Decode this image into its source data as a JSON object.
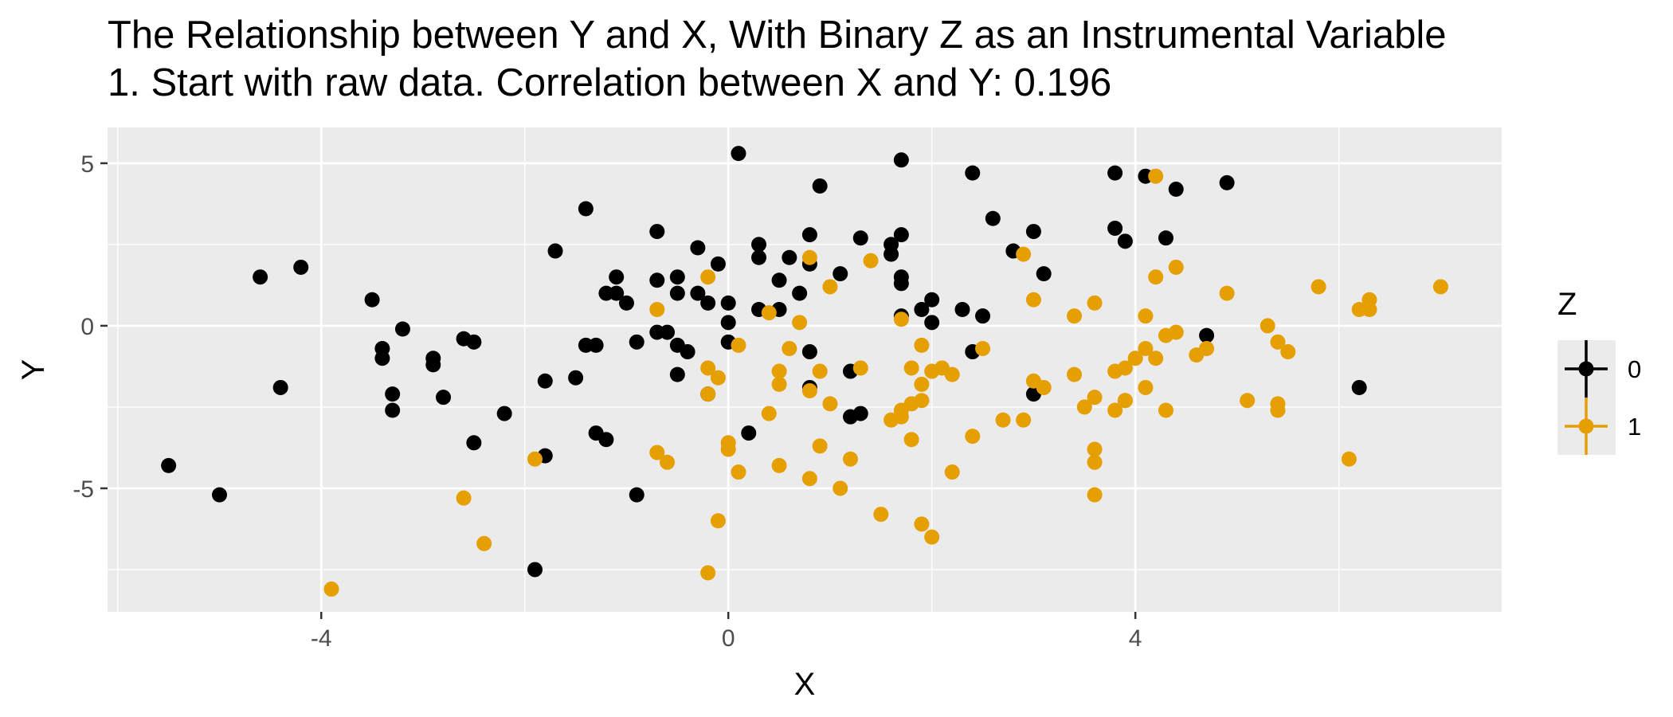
{
  "chart_data": {
    "type": "scatter",
    "title": "The Relationship between Y and X, With Binary Z as an Instrumental Variable",
    "subtitle": "1. Start with raw data. Correlation between X and Y: 0.196",
    "xlabel": "X",
    "ylabel": "Y",
    "xlim": [
      -6.1,
      7.6
    ],
    "ylim": [
      -8.8,
      6.1
    ],
    "xticks": [
      {
        "value": -4,
        "label": "-4"
      },
      {
        "value": 0,
        "label": "0"
      },
      {
        "value": 4,
        "label": "4"
      }
    ],
    "yticks": [
      {
        "value": -5,
        "label": "-5"
      },
      {
        "value": 0,
        "label": "0"
      },
      {
        "value": 5,
        "label": "5"
      }
    ],
    "grid": true,
    "panel_background": "#ebebeb",
    "legend": {
      "title": "Z",
      "placement": "right",
      "entries": [
        {
          "label": "0",
          "color": "#000000"
        },
        {
          "label": "1",
          "color": "#e69f00"
        }
      ]
    },
    "series": [
      {
        "name": "0",
        "color": "#000000",
        "points": [
          [
            -5.5,
            -4.3
          ],
          [
            -5.0,
            -5.2
          ],
          [
            -4.6,
            1.5
          ],
          [
            -4.4,
            -1.9
          ],
          [
            -4.2,
            1.8
          ],
          [
            -3.5,
            0.8
          ],
          [
            -3.4,
            -0.7
          ],
          [
            -3.4,
            -1.0
          ],
          [
            -3.3,
            -2.1
          ],
          [
            -3.3,
            -2.6
          ],
          [
            -3.2,
            -0.1
          ],
          [
            -2.9,
            -1.0
          ],
          [
            -2.9,
            -1.2
          ],
          [
            -2.8,
            -2.2
          ],
          [
            -2.6,
            -0.4
          ],
          [
            -2.5,
            -0.5
          ],
          [
            -2.5,
            -3.6
          ],
          [
            -2.2,
            -2.7
          ],
          [
            -1.9,
            -7.5
          ],
          [
            -1.8,
            -1.7
          ],
          [
            -1.8,
            -4.0
          ],
          [
            -1.7,
            2.3
          ],
          [
            -1.5,
            -1.6
          ],
          [
            -1.4,
            -0.6
          ],
          [
            -1.4,
            3.6
          ],
          [
            -1.3,
            -0.6
          ],
          [
            -1.3,
            -3.3
          ],
          [
            -1.2,
            1.0
          ],
          [
            -1.2,
            -3.5
          ],
          [
            -1.1,
            1.0
          ],
          [
            -1.1,
            1.5
          ],
          [
            -1.0,
            0.7
          ],
          [
            -0.9,
            -0.5
          ],
          [
            -0.9,
            -5.2
          ],
          [
            -0.7,
            2.9
          ],
          [
            -0.7,
            1.4
          ],
          [
            -0.7,
            -0.2
          ],
          [
            -0.6,
            -0.2
          ],
          [
            -0.5,
            1.5
          ],
          [
            -0.5,
            1.0
          ],
          [
            -0.5,
            -0.6
          ],
          [
            -0.5,
            -1.5
          ],
          [
            -0.4,
            -0.8
          ],
          [
            -0.3,
            1.0
          ],
          [
            -0.3,
            2.4
          ],
          [
            -0.2,
            0.7
          ],
          [
            -0.2,
            -2.1
          ],
          [
            -0.1,
            1.9
          ],
          [
            0.0,
            0.7
          ],
          [
            0.0,
            0.1
          ],
          [
            0.0,
            -0.5
          ],
          [
            0.1,
            5.3
          ],
          [
            0.2,
            -3.3
          ],
          [
            0.3,
            2.5
          ],
          [
            0.3,
            2.1
          ],
          [
            0.3,
            0.5
          ],
          [
            0.5,
            1.4
          ],
          [
            0.5,
            0.5
          ],
          [
            0.6,
            2.1
          ],
          [
            0.7,
            1.0
          ],
          [
            0.8,
            2.8
          ],
          [
            0.8,
            1.9
          ],
          [
            0.8,
            -0.8
          ],
          [
            0.8,
            -1.9
          ],
          [
            0.9,
            4.3
          ],
          [
            1.1,
            1.6
          ],
          [
            1.2,
            -1.4
          ],
          [
            1.2,
            -2.8
          ],
          [
            1.3,
            2.7
          ],
          [
            1.3,
            -2.7
          ],
          [
            1.6,
            2.5
          ],
          [
            1.6,
            2.2
          ],
          [
            1.7,
            2.8
          ],
          [
            1.7,
            1.5
          ],
          [
            1.7,
            0.3
          ],
          [
            1.7,
            5.1
          ],
          [
            1.7,
            1.3
          ],
          [
            1.9,
            0.5
          ],
          [
            2.0,
            0.8
          ],
          [
            2.0,
            0.1
          ],
          [
            2.3,
            0.5
          ],
          [
            2.4,
            4.7
          ],
          [
            2.4,
            -0.8
          ],
          [
            2.5,
            0.3
          ],
          [
            2.6,
            3.3
          ],
          [
            2.8,
            2.3
          ],
          [
            3.0,
            2.9
          ],
          [
            3.0,
            -2.1
          ],
          [
            3.1,
            1.6
          ],
          [
            3.8,
            3.0
          ],
          [
            3.8,
            4.7
          ],
          [
            3.9,
            2.6
          ],
          [
            4.1,
            4.6
          ],
          [
            4.3,
            2.7
          ],
          [
            4.4,
            4.2
          ],
          [
            4.7,
            -0.3
          ],
          [
            4.9,
            4.4
          ],
          [
            6.2,
            -1.9
          ]
        ]
      },
      {
        "name": "1",
        "color": "#e69f00",
        "points": [
          [
            -3.9,
            -8.1
          ],
          [
            -2.6,
            -5.3
          ],
          [
            -2.4,
            -6.7
          ],
          [
            -1.9,
            -4.1
          ],
          [
            -0.7,
            0.5
          ],
          [
            -0.7,
            -3.9
          ],
          [
            -0.6,
            -4.2
          ],
          [
            -0.2,
            1.5
          ],
          [
            -0.2,
            -7.6
          ],
          [
            -0.2,
            -2.1
          ],
          [
            -0.2,
            -1.3
          ],
          [
            -0.1,
            -1.6
          ],
          [
            -0.1,
            -6.0
          ],
          [
            0.0,
            -3.8
          ],
          [
            0.0,
            -3.6
          ],
          [
            0.1,
            -0.6
          ],
          [
            0.1,
            -4.5
          ],
          [
            0.4,
            -2.7
          ],
          [
            0.4,
            0.4
          ],
          [
            0.5,
            -1.8
          ],
          [
            0.5,
            -1.4
          ],
          [
            0.5,
            -4.3
          ],
          [
            0.6,
            -0.7
          ],
          [
            0.7,
            0.1
          ],
          [
            0.8,
            2.1
          ],
          [
            0.8,
            -2.0
          ],
          [
            0.8,
            -4.7
          ],
          [
            0.9,
            -1.4
          ],
          [
            0.9,
            -3.7
          ],
          [
            1.0,
            -2.4
          ],
          [
            1.0,
            1.2
          ],
          [
            1.1,
            -5.0
          ],
          [
            1.2,
            -4.1
          ],
          [
            1.3,
            -1.3
          ],
          [
            1.4,
            2.0
          ],
          [
            1.5,
            -5.8
          ],
          [
            1.6,
            -2.9
          ],
          [
            1.7,
            -2.6
          ],
          [
            1.7,
            0.2
          ],
          [
            1.7,
            -2.8
          ],
          [
            1.8,
            -1.3
          ],
          [
            1.8,
            -2.4
          ],
          [
            1.8,
            -3.5
          ],
          [
            1.9,
            -0.6
          ],
          [
            1.9,
            -6.1
          ],
          [
            1.9,
            -1.8
          ],
          [
            1.9,
            -2.3
          ],
          [
            2.0,
            -6.5
          ],
          [
            2.0,
            -1.4
          ],
          [
            2.1,
            -1.3
          ],
          [
            2.2,
            -1.5
          ],
          [
            2.2,
            -4.5
          ],
          [
            2.4,
            -3.4
          ],
          [
            2.5,
            -0.7
          ],
          [
            2.7,
            -2.9
          ],
          [
            2.9,
            -2.9
          ],
          [
            2.9,
            2.2
          ],
          [
            3.0,
            0.8
          ],
          [
            3.0,
            -1.7
          ],
          [
            3.1,
            -1.9
          ],
          [
            3.4,
            -1.5
          ],
          [
            3.4,
            0.3
          ],
          [
            3.5,
            -2.5
          ],
          [
            3.6,
            -2.2
          ],
          [
            3.6,
            0.7
          ],
          [
            3.6,
            -3.8
          ],
          [
            3.6,
            -4.2
          ],
          [
            3.6,
            -5.2
          ],
          [
            3.8,
            -2.6
          ],
          [
            3.8,
            -1.4
          ],
          [
            3.9,
            -1.3
          ],
          [
            3.9,
            -2.3
          ],
          [
            3.9,
            -2.3
          ],
          [
            4.0,
            -1.0
          ],
          [
            4.1,
            -1.9
          ],
          [
            4.1,
            -0.7
          ],
          [
            4.1,
            0.3
          ],
          [
            4.2,
            1.5
          ],
          [
            4.2,
            -1.0
          ],
          [
            4.2,
            4.6
          ],
          [
            4.3,
            -2.6
          ],
          [
            4.3,
            -0.3
          ],
          [
            4.4,
            -0.2
          ],
          [
            4.4,
            1.8
          ],
          [
            4.6,
            -0.9
          ],
          [
            4.7,
            -0.7
          ],
          [
            4.9,
            1.0
          ],
          [
            5.1,
            -2.3
          ],
          [
            5.3,
            0.0
          ],
          [
            5.4,
            -0.5
          ],
          [
            5.4,
            -2.4
          ],
          [
            5.4,
            -2.6
          ],
          [
            5.5,
            -0.8
          ],
          [
            5.8,
            1.2
          ],
          [
            6.1,
            -4.1
          ],
          [
            6.2,
            0.5
          ],
          [
            6.3,
            0.5
          ],
          [
            6.3,
            0.8
          ],
          [
            7.0,
            1.2
          ]
        ]
      }
    ]
  }
}
